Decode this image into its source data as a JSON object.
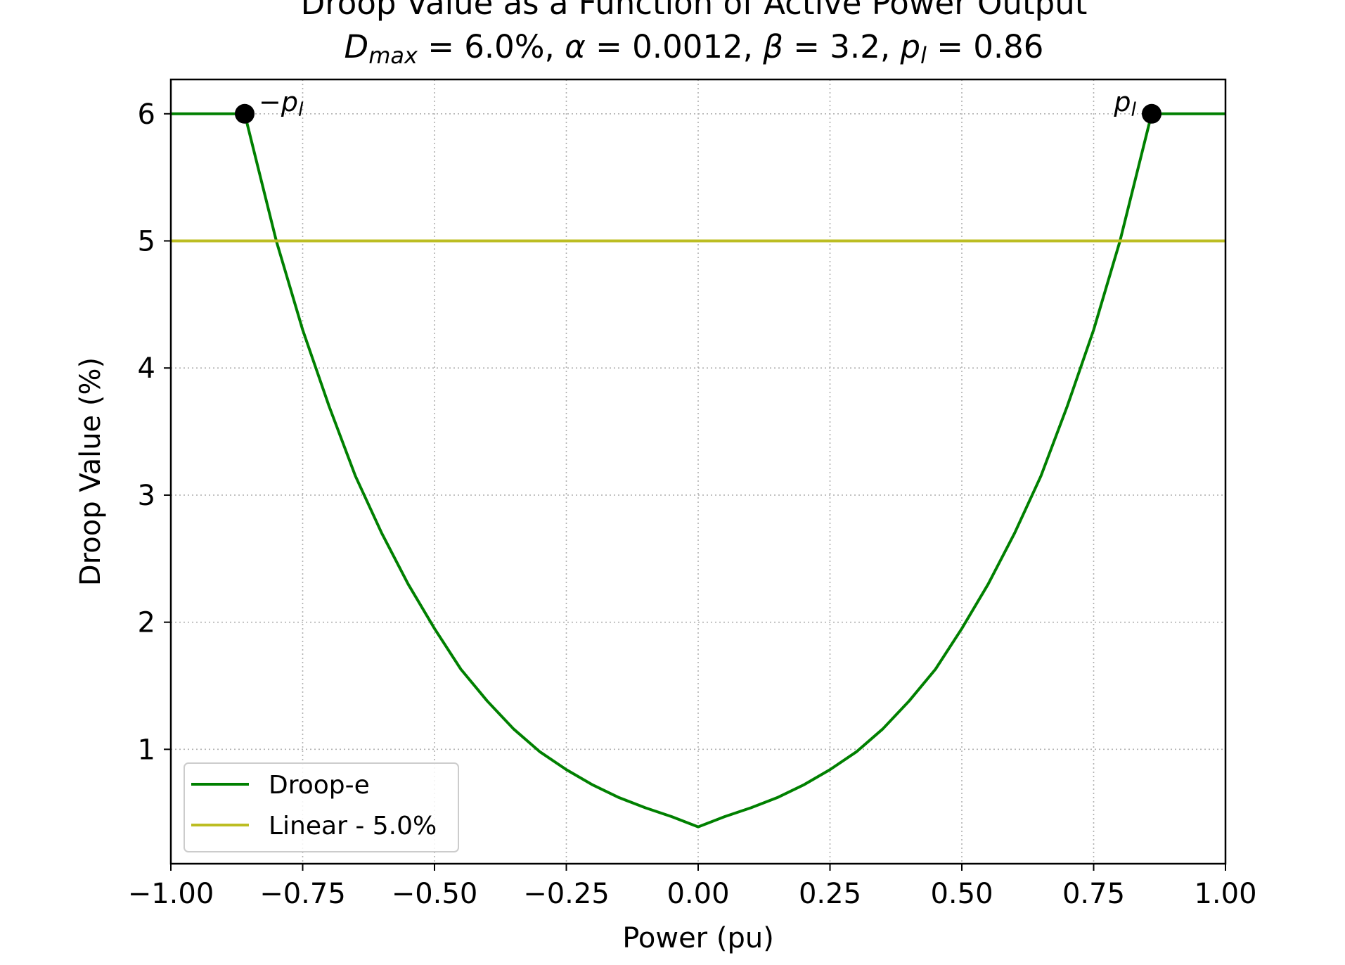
{
  "chart_data": {
    "type": "line",
    "title": "Droop Value as a Function of Active Power Output",
    "subtitle": "D_max = 6.0%, α = 0.0012, β = 3.2, p_l = 0.86",
    "subtitle_parts": {
      "dmax_symbol": "D",
      "dmax_sub": "max",
      "dmax_value": " = 6.0%, ",
      "alpha_symbol": "α",
      "alpha_value": " = 0.0012, ",
      "beta_symbol": "β",
      "beta_value": " = 3.2, ",
      "pl_symbol": "p",
      "pl_sub": "l",
      "pl_value": " = 0.86"
    },
    "xlabel": "Power (pu)",
    "ylabel": "Droop Value (%)",
    "xlim": [
      -1.0,
      1.0
    ],
    "ylim": [
      0.1,
      6.27
    ],
    "xticks": [
      -1.0,
      -0.75,
      -0.5,
      -0.25,
      0.0,
      0.25,
      0.5,
      0.75,
      1.0
    ],
    "xtick_labels": [
      "−1.00",
      "−0.75",
      "−0.50",
      "−0.25",
      "0.00",
      "0.25",
      "0.50",
      "0.75",
      "1.00"
    ],
    "yticks": [
      1,
      2,
      3,
      4,
      5,
      6
    ],
    "ytick_labels": [
      "1",
      "2",
      "3",
      "4",
      "5",
      "6"
    ],
    "grid": true,
    "legend_position": "lower-left",
    "series": [
      {
        "name": "Droop-e",
        "color": "#008000",
        "x": [
          -1.0,
          -0.86,
          -0.8,
          -0.75,
          -0.7,
          -0.65,
          -0.6,
          -0.55,
          -0.5,
          -0.45,
          -0.4,
          -0.35,
          -0.3,
          -0.25,
          -0.2,
          -0.15,
          -0.1,
          -0.05,
          0.0,
          0.05,
          0.1,
          0.15,
          0.2,
          0.25,
          0.3,
          0.35,
          0.4,
          0.45,
          0.5,
          0.55,
          0.6,
          0.65,
          0.7,
          0.75,
          0.8,
          0.86,
          1.0
        ],
        "y": [
          6.0,
          6.0,
          5.0,
          4.3,
          3.7,
          3.15,
          2.7,
          2.3,
          1.95,
          1.63,
          1.38,
          1.16,
          0.98,
          0.84,
          0.72,
          0.62,
          0.54,
          0.47,
          0.39,
          0.47,
          0.54,
          0.62,
          0.72,
          0.84,
          0.98,
          1.16,
          1.38,
          1.63,
          1.95,
          2.3,
          2.7,
          3.15,
          3.7,
          4.3,
          5.0,
          6.0,
          6.0
        ]
      },
      {
        "name": "Linear - 5.0%",
        "color": "#bcbd22",
        "x": [
          -1.0,
          1.0
        ],
        "y": [
          5.0,
          5.0
        ]
      }
    ],
    "markers": [
      {
        "x": -0.86,
        "y": 6.0,
        "color": "#000000"
      },
      {
        "x": 0.86,
        "y": 6.0,
        "color": "#000000"
      }
    ],
    "annotations": [
      {
        "prefix": "−",
        "symbol": "p",
        "sub": "l",
        "x": -0.86,
        "y": 6.0,
        "side": "right"
      },
      {
        "prefix": "",
        "symbol": "p",
        "sub": "l",
        "x": 0.86,
        "y": 6.0,
        "side": "left"
      }
    ]
  }
}
